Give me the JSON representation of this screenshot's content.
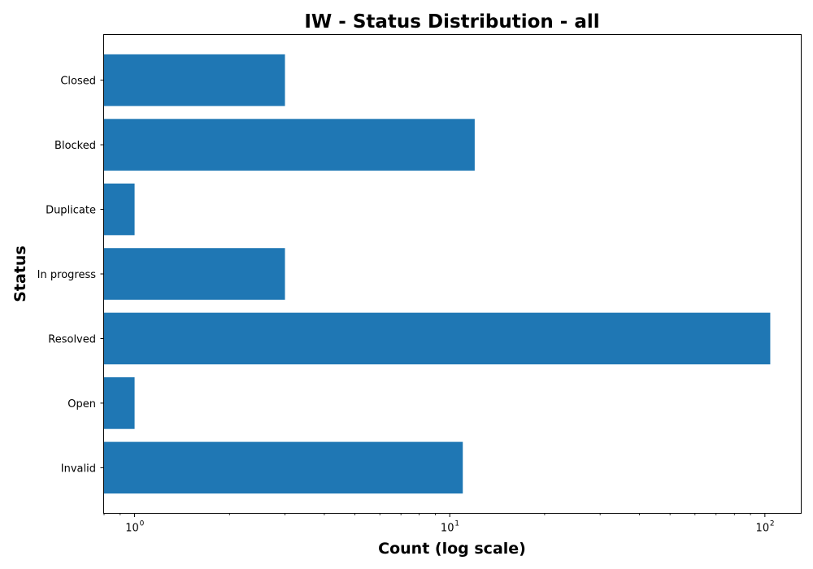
{
  "chart_data": {
    "type": "bar",
    "orientation": "horizontal",
    "title": "IW - Status Distribution - all",
    "xlabel": "Count (log scale)",
    "ylabel": "Status",
    "x_scale": "log",
    "xlim": [
      0.8,
      130
    ],
    "categories": [
      "Invalid",
      "Open",
      "Resolved",
      "In progress",
      "Duplicate",
      "Blocked",
      "Closed"
    ],
    "values": [
      11,
      1,
      104,
      3,
      1,
      12,
      3
    ],
    "x_ticks": [
      {
        "base": "10",
        "exp": "0",
        "value": 1
      },
      {
        "base": "10",
        "exp": "1",
        "value": 10
      },
      {
        "base": "10",
        "exp": "2",
        "value": 100
      }
    ],
    "bar_color": "#1f77b4",
    "grid": false,
    "legend": "none"
  }
}
